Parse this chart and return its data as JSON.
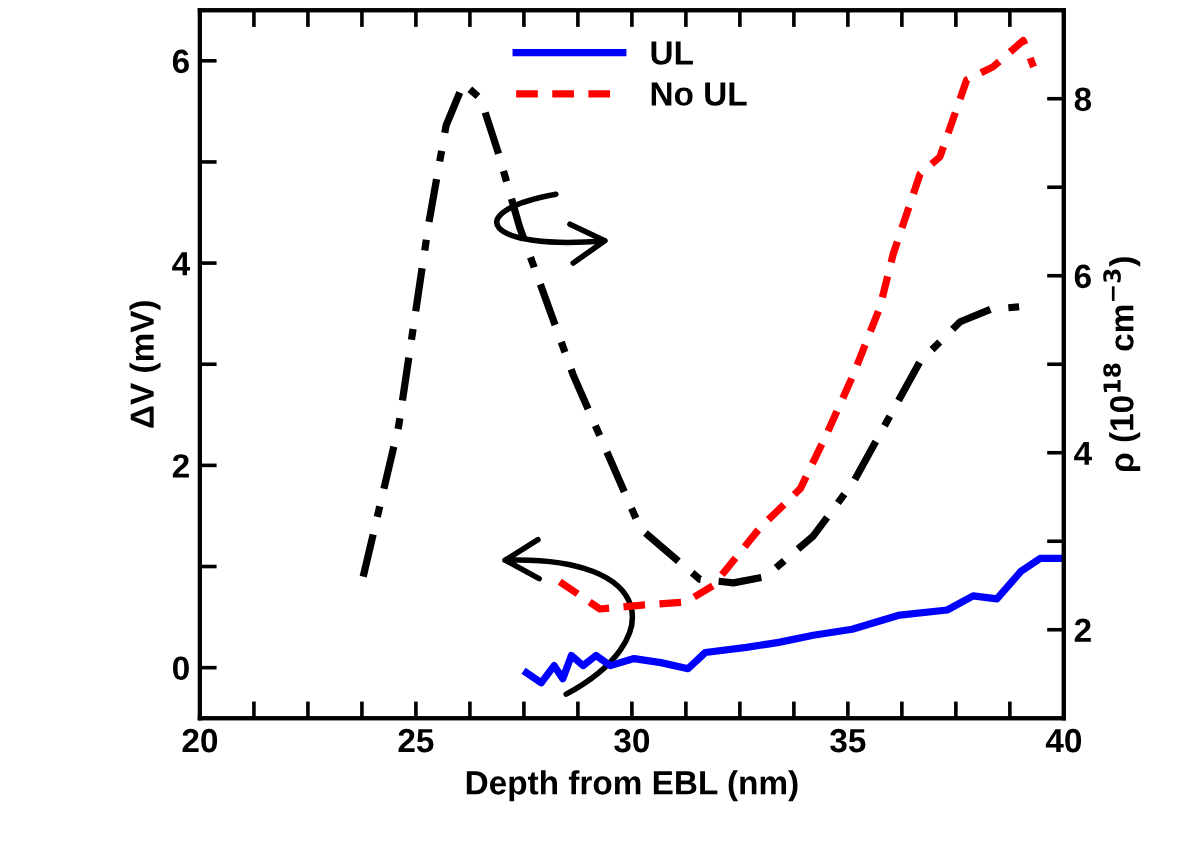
{
  "chart_data": {
    "type": "line",
    "xlabel": "Depth from EBL (nm)",
    "ylabel": "ΔV (mV)",
    "y2label": "ρ (10$^{18}$ cm$^{−3}$)",
    "xlim": [
      20,
      40
    ],
    "ylim": [
      -0.5,
      6.5
    ],
    "y2lim": [
      1,
      9
    ],
    "xticks": [
      20,
      {
        "value": 21.25,
        "label": null
      },
      {
        "value": 22.5,
        "label": null
      },
      {
        "value": 23.75,
        "label": null
      },
      25,
      {
        "value": 26.25,
        "label": null
      },
      {
        "value": 27.5,
        "label": null
      },
      {
        "value": 28.75,
        "label": null
      },
      30,
      {
        "value": 31.25,
        "label": null
      },
      {
        "value": 32.5,
        "label": null
      },
      {
        "value": 33.75,
        "label": null
      },
      35,
      {
        "value": 36.25,
        "label": null
      },
      {
        "value": 37.5,
        "label": null
      },
      {
        "value": 38.75,
        "label": null
      },
      40
    ],
    "yticks": [
      0,
      {
        "value": 1,
        "label": null
      },
      2,
      {
        "value": 3,
        "label": null
      },
      4,
      {
        "value": 5,
        "label": null
      },
      6
    ],
    "y2ticks": [
      2,
      {
        "value": 3,
        "label": null
      },
      4,
      {
        "value": 5,
        "label": null
      },
      6,
      {
        "value": 7,
        "label": null
      },
      8
    ],
    "legend": "top",
    "grid": false,
    "series": [
      {
        "name": "UL",
        "color": "#0000ff",
        "line_style": "solid",
        "x": [
          27.56,
          27.9,
          28.2,
          28.4,
          28.6,
          28.87,
          29.17,
          29.5,
          30.05,
          30.67,
          31.3,
          31.7,
          32.65,
          33.4,
          34.2,
          35.1,
          36.2,
          37.3,
          37.9,
          38.45,
          39.0,
          39.45,
          39.9
        ],
        "values": [
          -0.05,
          -0.15,
          0.02,
          -0.11,
          0.12,
          0.02,
          0.12,
          0.02,
          0.09,
          0.05,
          -0.01,
          0.15,
          0.2,
          0.25,
          0.32,
          0.38,
          0.52,
          0.57,
          0.71,
          0.68,
          0.95,
          1.08,
          1.08
        ]
      },
      {
        "name": "No UL",
        "color": "#ff0000",
        "line_style": "dashed",
        "x": [
          28.33,
          29.26,
          30.3,
          31.25,
          31.88,
          32.96,
          33.9,
          34.5,
          35.13,
          35.74,
          36.05,
          36.67,
          37.13,
          37.75,
          38.36,
          39.06,
          39.3
        ],
        "values": [
          0.85,
          0.58,
          0.62,
          0.65,
          0.81,
          1.38,
          1.77,
          2.3,
          2.9,
          3.56,
          4.09,
          4.88,
          5.05,
          5.81,
          5.94,
          6.2,
          5.94
        ]
      },
      {
        "color": "#000000",
        "line_style": "dashdot",
        "axis": "y2",
        "x": [
          23.78,
          24.6,
          25.3,
          25.7,
          26.1,
          26.5,
          26.9,
          27.4,
          28.64,
          30.2,
          31.57,
          32.35,
          33.1,
          34.2,
          35.13,
          35.9,
          36.67,
          37.6,
          38.3,
          38.98
        ],
        "values": [
          2.6,
          4.3,
          6.6,
          7.7,
          8.17,
          8.0,
          7.4,
          6.55,
          4.88,
          3.14,
          2.57,
          2.53,
          2.6,
          3.06,
          3.67,
          4.35,
          5.03,
          5.48,
          5.62,
          5.65
        ]
      }
    ]
  }
}
